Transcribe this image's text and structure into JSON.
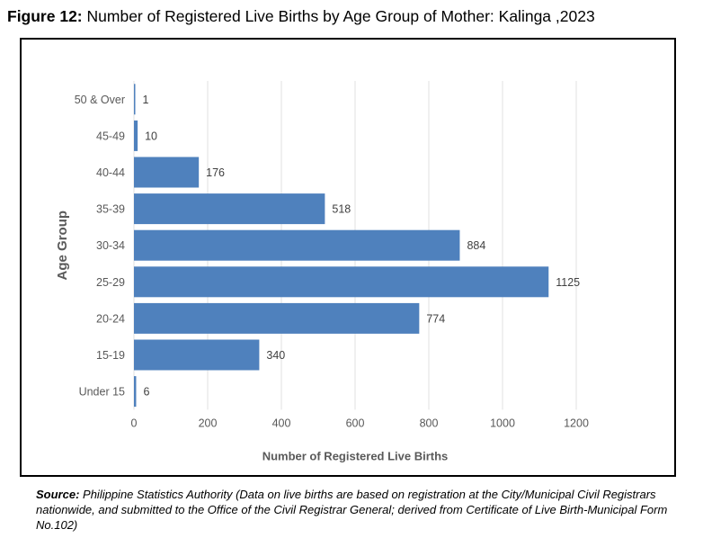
{
  "figure": {
    "label": "Figure 12:",
    "title": "Number of Registered Live Births by Age Group of Mother: Kalinga ,2023"
  },
  "source": {
    "label": "Source:",
    "text": "Philippine Statistics Authority (Data on live births are based on registration at the City/Municipal Civil Registrars nationwide, and submitted to the Office of the Civil Registrar General; derived from Certificate of Live Birth-Municipal Form No.102)"
  },
  "colors": {
    "bar": "#4f81bd",
    "grid": "#e0e0e0",
    "axis_text": "#595959"
  },
  "chart_data": {
    "type": "bar",
    "orientation": "horizontal",
    "title": "",
    "xlabel": "Number of Registered Live Births",
    "ylabel": "Age Group",
    "categories": [
      "50 & Over",
      "45-49",
      "40-44",
      "35-39",
      "30-34",
      "25-29",
      "20-24",
      "15-19",
      "Under 15"
    ],
    "values": [
      1,
      10,
      176,
      518,
      884,
      1125,
      774,
      340,
      6
    ],
    "xlim": [
      0,
      1200
    ],
    "xticks": [
      0,
      200,
      400,
      600,
      800,
      1000,
      1200
    ],
    "grid": "vertical",
    "legend": "none",
    "data_labels": true
  }
}
